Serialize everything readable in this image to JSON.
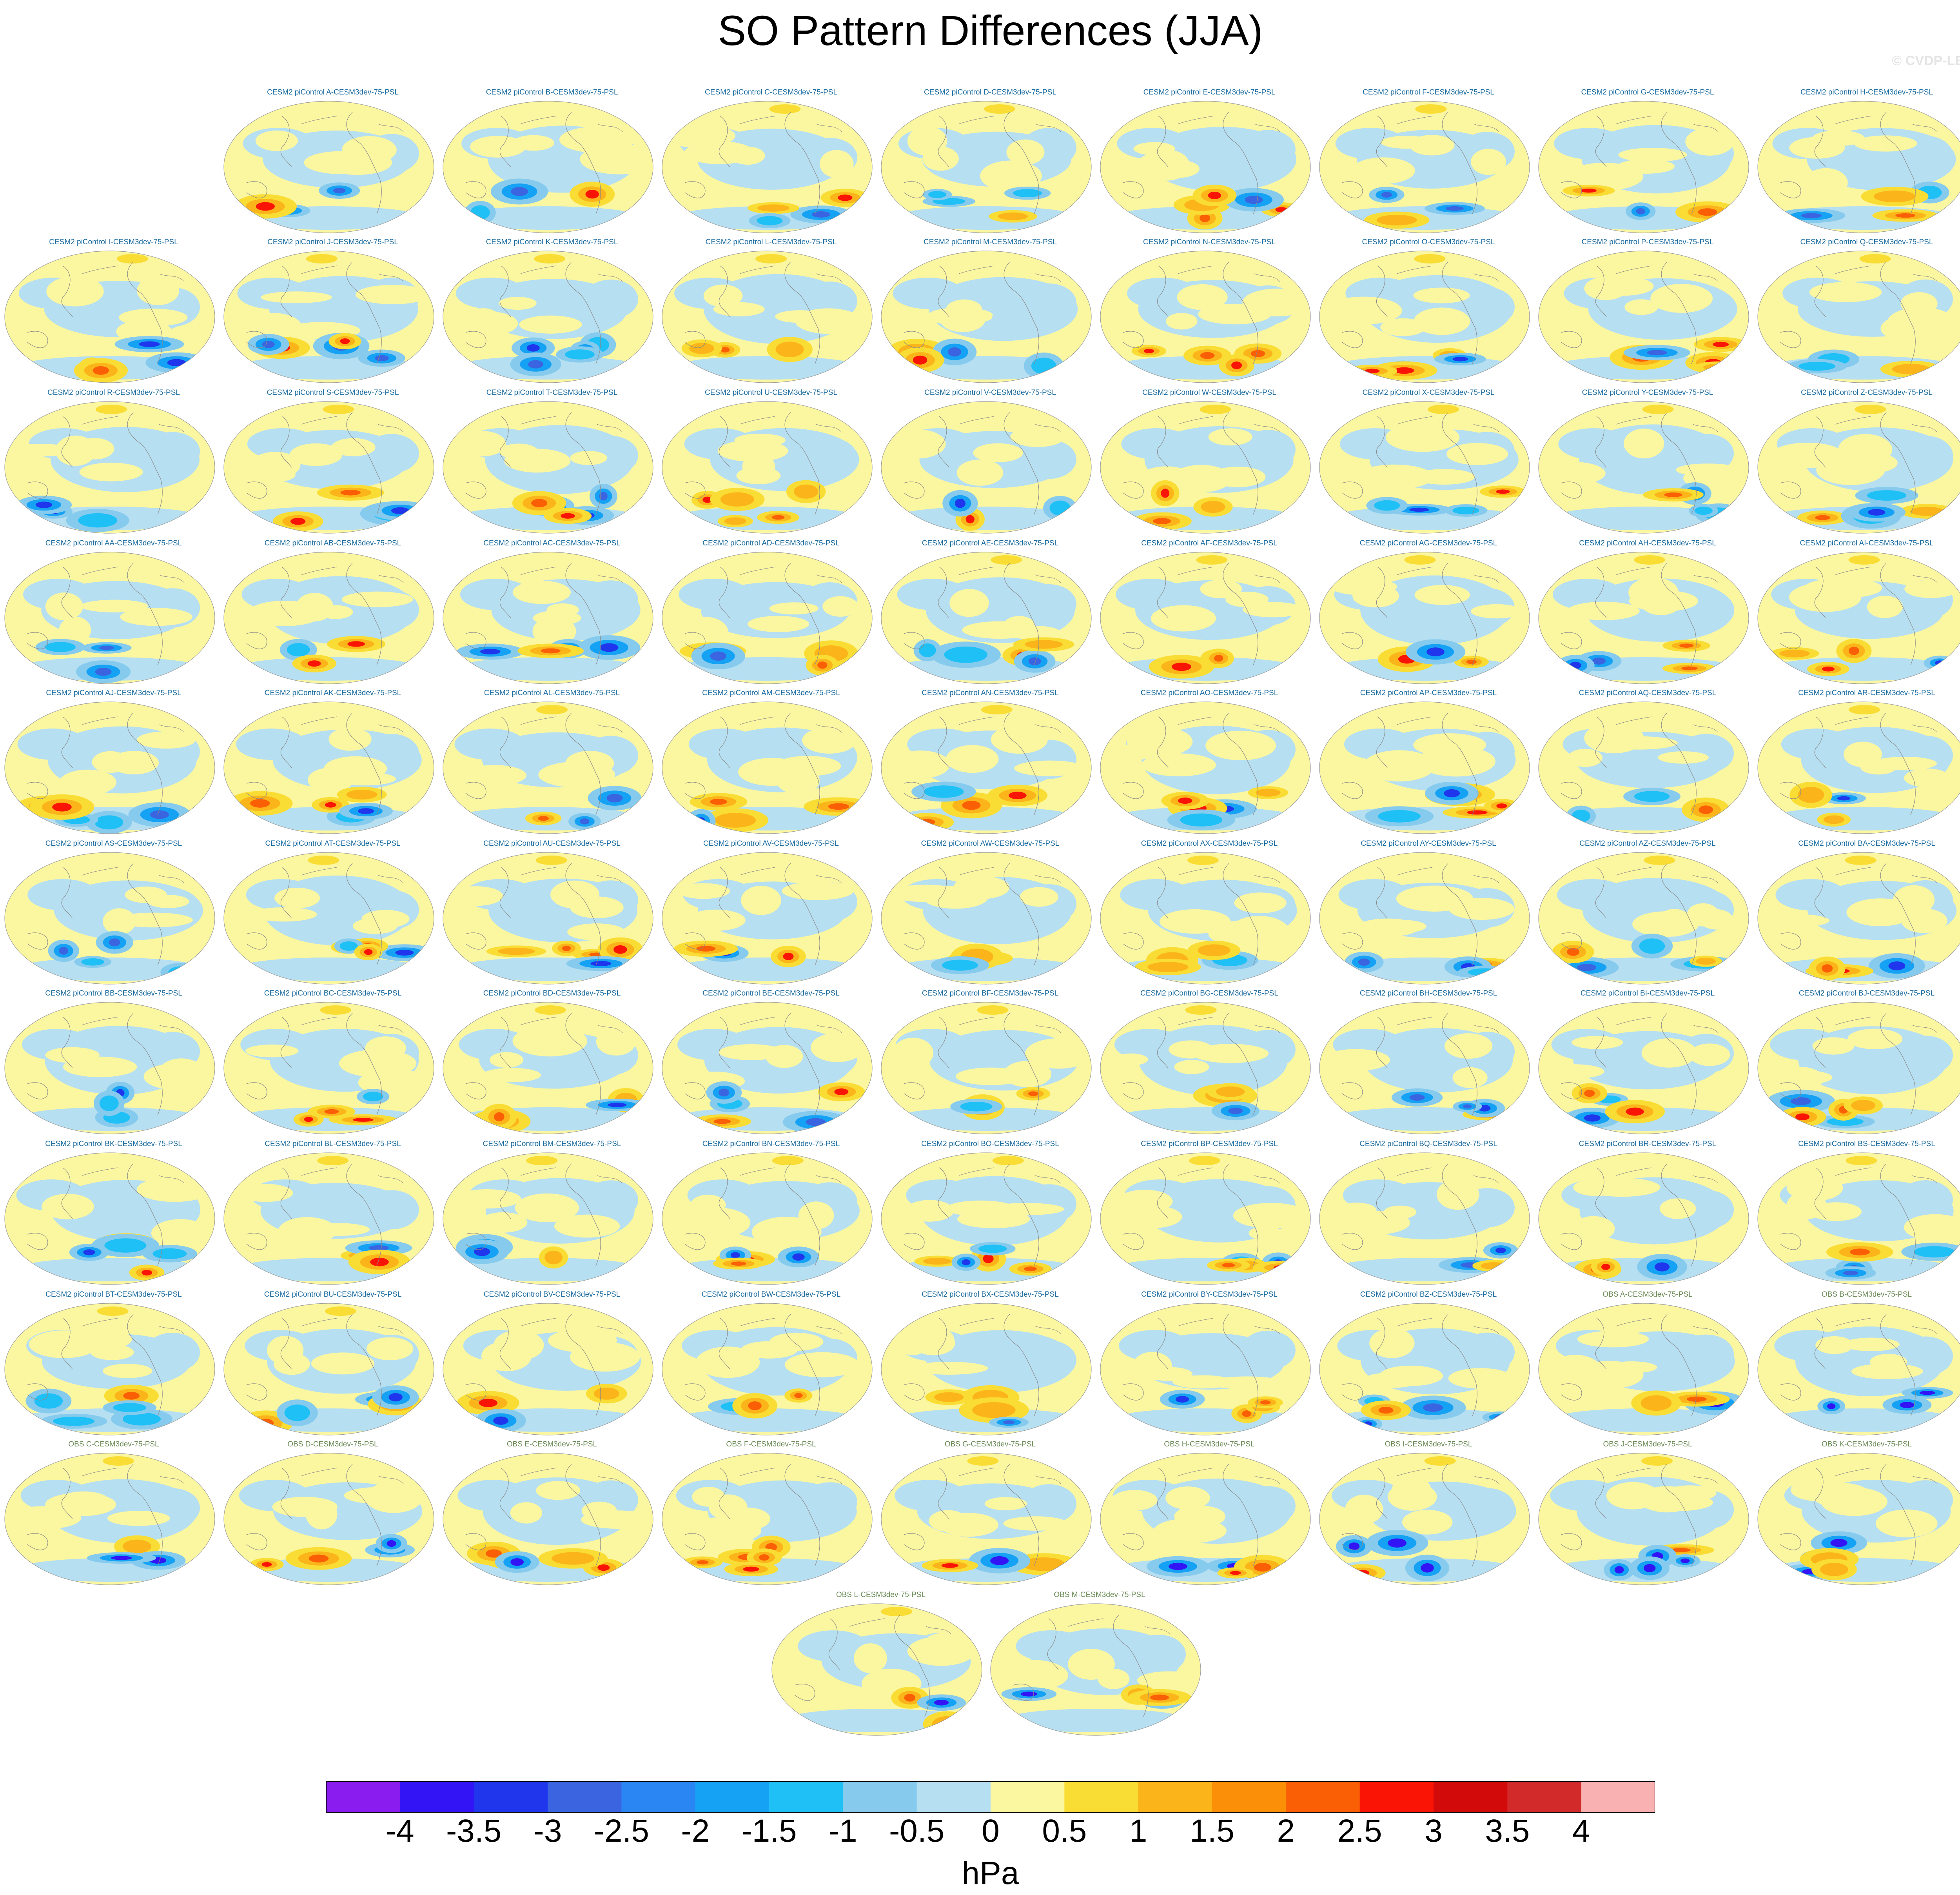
{
  "title": "SO Pattern Differences (JJA)",
  "watermark": "© CVDP-LE",
  "chart_data": {
    "type": "heatmap",
    "title": "SO Pattern Differences (JJA)",
    "description_units": "hPa",
    "panel_titles": [
      "CESM2 piControl A-CESM3dev-75-PSL",
      "CESM2 piControl B-CESM3dev-75-PSL",
      "CESM2 piControl C-CESM3dev-75-PSL",
      "CESM2 piControl D-CESM3dev-75-PSL",
      "CESM2 piControl E-CESM3dev-75-PSL",
      "CESM2 piControl F-CESM3dev-75-PSL",
      "CESM2 piControl G-CESM3dev-75-PSL",
      "CESM2 piControl H-CESM3dev-75-PSL",
      "CESM2 piControl I-CESM3dev-75-PSL",
      "CESM2 piControl J-CESM3dev-75-PSL",
      "CESM2 piControl K-CESM3dev-75-PSL",
      "CESM2 piControl L-CESM3dev-75-PSL",
      "CESM2 piControl M-CESM3dev-75-PSL",
      "CESM2 piControl N-CESM3dev-75-PSL",
      "CESM2 piControl O-CESM3dev-75-PSL",
      "CESM2 piControl P-CESM3dev-75-PSL",
      "CESM2 piControl Q-CESM3dev-75-PSL",
      "CESM2 piControl R-CESM3dev-75-PSL",
      "CESM2 piControl S-CESM3dev-75-PSL",
      "CESM2 piControl T-CESM3dev-75-PSL",
      "CESM2 piControl U-CESM3dev-75-PSL",
      "CESM2 piControl V-CESM3dev-75-PSL",
      "CESM2 piControl W-CESM3dev-75-PSL",
      "CESM2 piControl X-CESM3dev-75-PSL",
      "CESM2 piControl Y-CESM3dev-75-PSL",
      "CESM2 piControl Z-CESM3dev-75-PSL",
      "CESM2 piControl AA-CESM3dev-75-PSL",
      "CESM2 piControl AB-CESM3dev-75-PSL",
      "CESM2 piControl AC-CESM3dev-75-PSL",
      "CESM2 piControl AD-CESM3dev-75-PSL",
      "CESM2 piControl AE-CESM3dev-75-PSL",
      "CESM2 piControl AF-CESM3dev-75-PSL",
      "CESM2 piControl AG-CESM3dev-75-PSL",
      "CESM2 piControl AH-CESM3dev-75-PSL",
      "CESM2 piControl AI-CESM3dev-75-PSL",
      "CESM2 piControl AJ-CESM3dev-75-PSL",
      "CESM2 piControl AK-CESM3dev-75-PSL",
      "CESM2 piControl AL-CESM3dev-75-PSL",
      "CESM2 piControl AM-CESM3dev-75-PSL",
      "CESM2 piControl AN-CESM3dev-75-PSL",
      "CESM2 piControl AO-CESM3dev-75-PSL",
      "CESM2 piControl AP-CESM3dev-75-PSL",
      "CESM2 piControl AQ-CESM3dev-75-PSL",
      "CESM2 piControl AR-CESM3dev-75-PSL",
      "CESM2 piControl AS-CESM3dev-75-PSL",
      "CESM2 piControl AT-CESM3dev-75-PSL",
      "CESM2 piControl AU-CESM3dev-75-PSL",
      "CESM2 piControl AV-CESM3dev-75-PSL",
      "CESM2 piControl AW-CESM3dev-75-PSL",
      "CESM2 piControl AX-CESM3dev-75-PSL",
      "CESM2 piControl AY-CESM3dev-75-PSL",
      "CESM2 piControl AZ-CESM3dev-75-PSL",
      "CESM2 piControl BA-CESM3dev-75-PSL",
      "CESM2 piControl BB-CESM3dev-75-PSL",
      "CESM2 piControl BC-CESM3dev-75-PSL",
      "CESM2 piControl BD-CESM3dev-75-PSL",
      "CESM2 piControl BE-CESM3dev-75-PSL",
      "CESM2 piControl BF-CESM3dev-75-PSL",
      "CESM2 piControl BG-CESM3dev-75-PSL",
      "CESM2 piControl BH-CESM3dev-75-PSL",
      "CESM2 piControl BI-CESM3dev-75-PSL",
      "CESM2 piControl BJ-CESM3dev-75-PSL",
      "CESM2 piControl BK-CESM3dev-75-PSL",
      "CESM2 piControl BL-CESM3dev-75-PSL",
      "CESM2 piControl BM-CESM3dev-75-PSL",
      "CESM2 piControl BN-CESM3dev-75-PSL",
      "CESM2 piControl BO-CESM3dev-75-PSL",
      "CESM2 piControl BP-CESM3dev-75-PSL",
      "CESM2 piControl BQ-CESM3dev-75-PSL",
      "CESM2 piControl BR-CESM3dev-75-PSL",
      "CESM2 piControl BS-CESM3dev-75-PSL",
      "CESM2 piControl BT-CESM3dev-75-PSL",
      "CESM2 piControl BU-CESM3dev-75-PSL",
      "CESM2 piControl BV-CESM3dev-75-PSL",
      "CESM2 piControl BW-CESM3dev-75-PSL",
      "CESM2 piControl BX-CESM3dev-75-PSL",
      "CESM2 piControl BY-CESM3dev-75-PSL",
      "CESM2 piControl BZ-CESM3dev-75-PSL",
      "OBS A-CESM3dev-75-PSL",
      "OBS B-CESM3dev-75-PSL",
      "OBS C-CESM3dev-75-PSL",
      "OBS D-CESM3dev-75-PSL",
      "OBS E-CESM3dev-75-PSL",
      "OBS F-CESM3dev-75-PSL",
      "OBS G-CESM3dev-75-PSL",
      "OBS H-CESM3dev-75-PSL",
      "OBS I-CESM3dev-75-PSL",
      "OBS J-CESM3dev-75-PSL",
      "OBS K-CESM3dev-75-PSL",
      "OBS L-CESM3dev-75-PSL",
      "OBS M-CESM3dev-75-PSL"
    ],
    "row_counts": [
      8,
      9,
      9,
      9,
      9,
      9,
      9,
      9,
      9,
      9,
      2
    ],
    "colorbar": {
      "ticks": [
        "-4",
        "-3.5",
        "-3",
        "-2.5",
        "-2",
        "-1.5",
        "-1",
        "-0.5",
        "0",
        "0.5",
        "1",
        "1.5",
        "2",
        "2.5",
        "3",
        "3.5",
        "4"
      ],
      "unit": "hPa",
      "colors": [
        "#8a1cf0",
        "#3214f5",
        "#1f36ec",
        "#3a64e0",
        "#2a86f2",
        "#16a2f4",
        "#1fc0f6",
        "#86cbee",
        "#b6dff1",
        "#fbf6a0",
        "#fadd34",
        "#fbb51a",
        "#fb8f08",
        "#fa5f06",
        "#fa1405",
        "#d20a0a",
        "#d22a2a",
        "#f9b1b1"
      ]
    },
    "colors": {
      "cesm_title": "#1a6ba0",
      "obs_title": "#6a8a55",
      "coast": "#8a8a8a"
    }
  }
}
